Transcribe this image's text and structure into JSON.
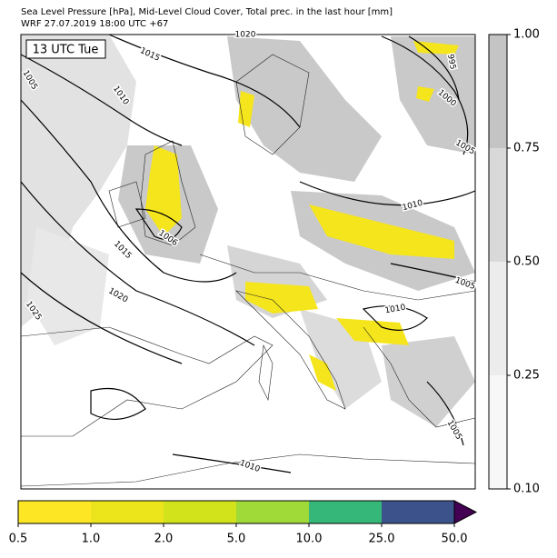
{
  "header": {
    "title": "Sea Level Pressure [hPa], Mid-Level Cloud Cover, Total prec. in the last hour [mm]",
    "subtitle": "WRF 27.07.2019 18:00 UTC +67"
  },
  "map": {
    "time_label": "13 UTC Tue",
    "isobar_labels": [
      1020,
      1015,
      1005,
      1010,
      995,
      1000,
      1005,
      1010,
      1006,
      1015,
      1020,
      1025,
      1005,
      1010,
      1005,
      1010
    ]
  },
  "cloud_colorbar": {
    "ticks": [
      {
        "value": 0.1,
        "label": "0.10"
      },
      {
        "value": 0.25,
        "label": "0.25"
      },
      {
        "value": 0.5,
        "label": "0.50"
      },
      {
        "value": 0.75,
        "label": "0.75"
      },
      {
        "value": 1,
        "label": "1.00"
      }
    ],
    "colors": [
      "#f7f7f7",
      "#ececec",
      "#d9d9d9",
      "#c4c4c4"
    ]
  },
  "precip_colorbar": {
    "ticks": [
      0.5,
      {
        "value": 1,
        "label": "1.0"
      },
      {
        "value": 2,
        "label": "2.0"
      },
      {
        "value": 5,
        "label": "5.0"
      },
      {
        "value": 10,
        "label": "10.0"
      },
      {
        "value": 25,
        "label": "25.0"
      },
      {
        "value": 50,
        "label": "50.0"
      }
    ],
    "colors": [
      "#fde725",
      "#ede51b",
      "#d2e21b",
      "#a0da39",
      "#35b779",
      "#3b528b"
    ],
    "extend_color": "#440154"
  }
}
